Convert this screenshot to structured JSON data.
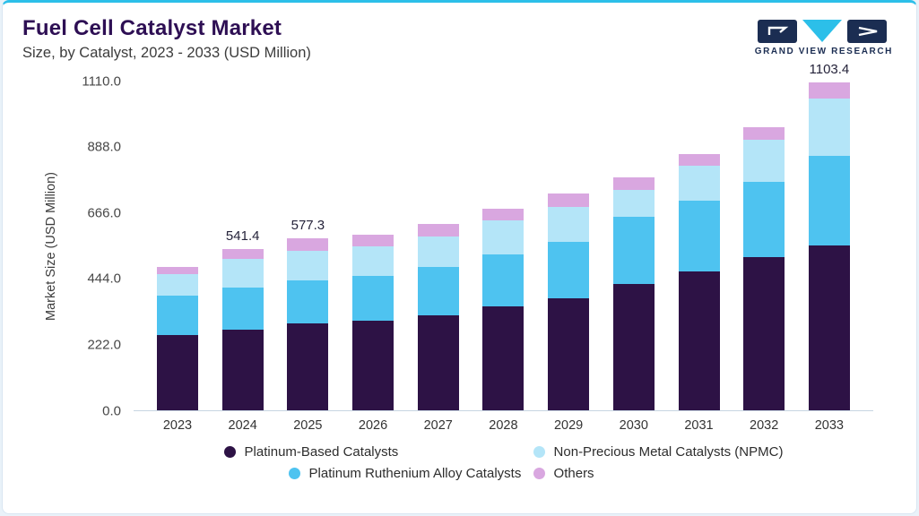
{
  "theme": {
    "accent": "#2cbfe9",
    "title_color": "#2e0f54",
    "logo_navy": "#1b2d52",
    "page_bg": "#e9f2f9"
  },
  "header": {
    "title": "Fuel Cell Catalyst Market",
    "subtitle": "Size, by Catalyst, 2023 - 2033 (USD Million)",
    "logo_text": "GRAND VIEW RESEARCH"
  },
  "chart_data": {
    "type": "bar",
    "stacked": true,
    "title": "Fuel Cell Catalyst Market Size, by Catalyst, 2023 - 2033 (USD Million)",
    "categories": [
      "2023",
      "2024",
      "2025",
      "2026",
      "2027",
      "2028",
      "2029",
      "2030",
      "2031",
      "2032",
      "2033"
    ],
    "series": [
      {
        "name": "Platinum-Based Catalysts",
        "color": "#2d1245",
        "values": [
          253,
          271,
          290,
          300,
          320,
          350,
          375,
          425,
          465,
          515,
          555
        ]
      },
      {
        "name": "Platinum Ruthenium Alloy Catalysts",
        "color": "#4ec3f0",
        "values": [
          132,
          141,
          145,
          150,
          160,
          175,
          190,
          225,
          240,
          252,
          300
        ]
      },
      {
        "name": "Non-Precious Metal Catalysts (NPMC)",
        "color": "#b4e5f8",
        "values": [
          72,
          96,
          100,
          100,
          105,
          113,
          120,
          92,
          118,
          143,
          195
        ]
      },
      {
        "name": "Others",
        "color": "#d9a7e0",
        "values": [
          24,
          33.4,
          42.3,
          40,
          40,
          40,
          45,
          40,
          40,
          43,
          53.4
        ]
      }
    ],
    "annotations": {
      "2024": "541.4",
      "2025": "577.3",
      "2033": "1103.4"
    },
    "ylabel": "Market Size (USD Million)",
    "xlabel": "",
    "ylim": [
      0,
      1110
    ],
    "yticks": [
      "0.0",
      "222.0",
      "444.0",
      "666.0",
      "888.0",
      "1110.0"
    ],
    "legend_order": [
      0,
      2,
      1,
      3
    ],
    "legend_position": "bottom",
    "grid": false
  }
}
